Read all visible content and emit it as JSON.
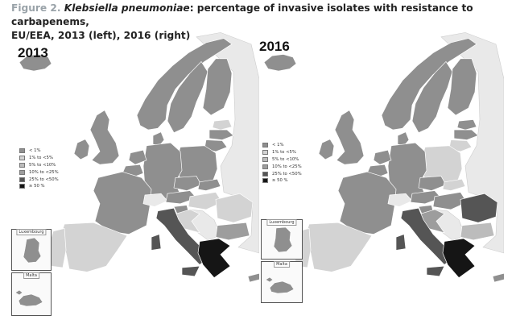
{
  "caption": {
    "figure_label": "Figure 2.",
    "species": "Klebsiella pneumoniae",
    "text_line1": ": percentage of invasive isolates with resistance to carbapenems,",
    "text_line2": "EU/EEA, 2013 (left), 2016 (right)"
  },
  "colors": {
    "lt1": "#8f8f8f",
    "p1to5": "#d3d3d3",
    "p5to10": "#bcbcbc",
    "p10to25": "#9d9d9d",
    "p25to50": "#555555",
    "ge50": "#151515",
    "nodata": "#e9e9e9",
    "sea": "#ffffff",
    "border": "#ffffff"
  },
  "legend": {
    "items": [
      {
        "label": "< 1%",
        "color": "#8f8f8f"
      },
      {
        "label": "1% to <5%",
        "color": "#d3d3d3"
      },
      {
        "label": "5% to <10%",
        "color": "#bcbcbc"
      },
      {
        "label": "10% to <25%",
        "color": "#9d9d9d"
      },
      {
        "label": "25% to <50%",
        "color": "#555555"
      },
      {
        "label": "≥ 50 %",
        "color": "#151515"
      }
    ]
  },
  "insets": {
    "luxembourg": "Luxembourg",
    "malta": "Malta"
  },
  "maps": [
    {
      "year": "2013",
      "fills": {
        "iceland": "#8f8f8f",
        "ireland": "#8f8f8f",
        "uk": "#8f8f8f",
        "norway": "#8f8f8f",
        "sweden": "#8f8f8f",
        "finland": "#8f8f8f",
        "denmark": "#8f8f8f",
        "estonia": "#d3d3d3",
        "latvia": "#8f8f8f",
        "lithuania": "#8f8f8f",
        "poland": "#8f8f8f",
        "germany": "#8f8f8f",
        "netherlands": "#8f8f8f",
        "belgium": "#8f8f8f",
        "france": "#8f8f8f",
        "spain": "#d3d3d3",
        "portugal": "#d3d3d3",
        "italy": "#555555",
        "switzerland": "#e9e9e9",
        "austria": "#8f8f8f",
        "czechia": "#8f8f8f",
        "slovakia": "#8f8f8f",
        "hungary": "#d3d3d3",
        "slovenia": "#8f8f8f",
        "croatia": "#d3d3d3",
        "romania": "#d3d3d3",
        "bulgaria": "#9d9d9d",
        "greece": "#151515",
        "cyprus": "#8f8f8f",
        "luxembourg": "#8f8f8f",
        "malta": "#8f8f8f"
      }
    },
    {
      "year": "2016",
      "fills": {
        "iceland": "#8f8f8f",
        "ireland": "#8f8f8f",
        "uk": "#8f8f8f",
        "norway": "#8f8f8f",
        "sweden": "#8f8f8f",
        "finland": "#8f8f8f",
        "denmark": "#8f8f8f",
        "estonia": "#8f8f8f",
        "latvia": "#8f8f8f",
        "lithuania": "#d3d3d3",
        "poland": "#d3d3d3",
        "germany": "#8f8f8f",
        "netherlands": "#8f8f8f",
        "belgium": "#8f8f8f",
        "france": "#8f8f8f",
        "spain": "#d3d3d3",
        "portugal": "#d3d3d3",
        "italy": "#555555",
        "switzerland": "#e9e9e9",
        "austria": "#8f8f8f",
        "czechia": "#8f8f8f",
        "slovakia": "#d3d3d3",
        "hungary": "#8f8f8f",
        "slovenia": "#8f8f8f",
        "croatia": "#9d9d9d",
        "romania": "#555555",
        "bulgaria": "#bcbcbc",
        "greece": "#151515",
        "cyprus": "#8f8f8f",
        "luxembourg": "#8f8f8f",
        "malta": "#8f8f8f"
      }
    }
  ]
}
